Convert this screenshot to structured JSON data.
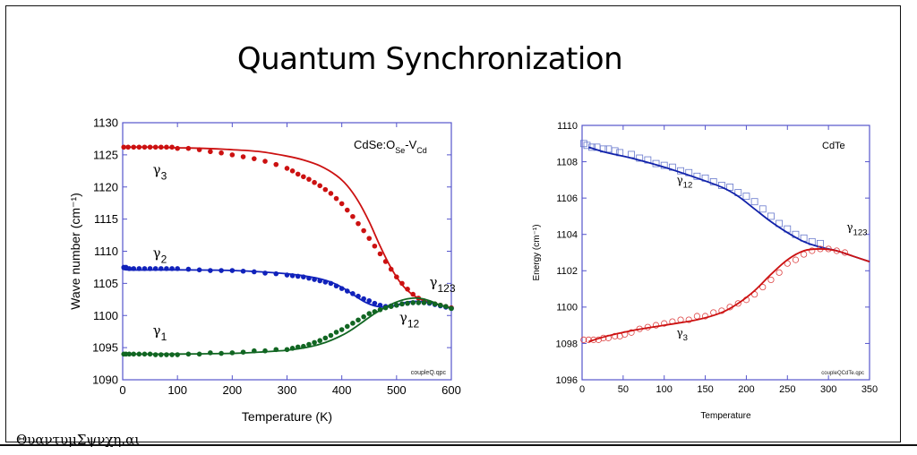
{
  "slide": {
    "title": "Quantum Synchronization",
    "footer": "ΘυαντυμΣψνχη.αι"
  },
  "chart_data": [
    {
      "type": "line",
      "title": "CdSe:O_Se-V_Cd",
      "annotation": {
        "main": "CdSe:O",
        "sub1": "Se",
        "mid": "-V",
        "sub2": "Cd"
      },
      "file_label": "coupleQ.qpc",
      "xlabel": "Temperature (K)",
      "ylabel": "Wave number (cm⁻¹)",
      "xlim": [
        0,
        600
      ],
      "ylim": [
        1090,
        1130
      ],
      "xticks": [
        0,
        100,
        200,
        300,
        400,
        500,
        600
      ],
      "yticks": [
        1090,
        1095,
        1100,
        1105,
        1110,
        1115,
        1120,
        1125,
        1130
      ],
      "grid": false,
      "labels": [
        {
          "text": "γ",
          "sub": "3",
          "x": 55,
          "y": 1122
        },
        {
          "text": "γ",
          "sub": "2",
          "x": 55,
          "y": 1109
        },
        {
          "text": "γ",
          "sub": "1",
          "x": 55,
          "y": 1097
        },
        {
          "text": "γ",
          "sub": "123",
          "x": 560,
          "y": 1104.5
        },
        {
          "text": "γ",
          "sub": "12",
          "x": 505,
          "y": 1099
        }
      ],
      "series": [
        {
          "name": "γ3 data",
          "style": "dots",
          "color": "#cc1111",
          "x": [
            2,
            10,
            20,
            30,
            40,
            50,
            60,
            70,
            80,
            90,
            100,
            120,
            140,
            160,
            180,
            200,
            220,
            240,
            260,
            280,
            300,
            310,
            320,
            330,
            340,
            350,
            360,
            370,
            380,
            390,
            400,
            410,
            420,
            430,
            440,
            450,
            460,
            470,
            480,
            490,
            500,
            510,
            520,
            530,
            540,
            550,
            560,
            570,
            580,
            590,
            600
          ],
          "y": [
            1126.2,
            1126.2,
            1126.2,
            1126.2,
            1126.2,
            1126.2,
            1126.2,
            1126.2,
            1126.2,
            1126.2,
            1126,
            1126,
            1125.8,
            1125.5,
            1125.3,
            1125,
            1124.7,
            1124.4,
            1124,
            1123.5,
            1122.9,
            1122.5,
            1122,
            1121.6,
            1121.2,
            1120.7,
            1120.2,
            1119.6,
            1119,
            1118.2,
            1117.4,
            1116.4,
            1115.4,
            1114.3,
            1113.2,
            1112,
            1110.8,
            1109.6,
            1108.4,
            1107.2,
            1106,
            1105,
            1104.1,
            1103.3,
            1102.7,
            1102.3,
            1102,
            1101.8,
            1101.6,
            1101.4,
            1101.2
          ]
        },
        {
          "name": "γ3 fit",
          "style": "line",
          "color": "#cc1111",
          "x": [
            0,
            50,
            100,
            150,
            200,
            250,
            300,
            330,
            360,
            390,
            410,
            430,
            450,
            470,
            490,
            510,
            530,
            550,
            570,
            590,
            600
          ],
          "y": [
            1126.2,
            1126.2,
            1126.1,
            1126,
            1125.8,
            1125.5,
            1124.8,
            1124.2,
            1123.3,
            1121.8,
            1120.2,
            1117.8,
            1114.6,
            1110.8,
            1107.4,
            1104.8,
            1103.2,
            1102.3,
            1101.8,
            1101.4,
            1101.2
          ]
        },
        {
          "name": "γ2 data",
          "style": "dots",
          "color": "#1122bb",
          "x": [
            2,
            6,
            12,
            20,
            30,
            40,
            50,
            60,
            70,
            80,
            90,
            100,
            120,
            140,
            160,
            180,
            200,
            220,
            240,
            260,
            280,
            300,
            310,
            320,
            330,
            340,
            350,
            360,
            370,
            380,
            390,
            400,
            410,
            420,
            430,
            440,
            450,
            460,
            470,
            480,
            490,
            500,
            510,
            520,
            530,
            540,
            550,
            560,
            570,
            580,
            590,
            600
          ],
          "y": [
            1107.5,
            1107.5,
            1107.3,
            1107.3,
            1107.3,
            1107.3,
            1107.3,
            1107.3,
            1107.3,
            1107.3,
            1107.3,
            1107.3,
            1107.2,
            1107.1,
            1107,
            1107,
            1107,
            1106.9,
            1106.8,
            1106.6,
            1106.5,
            1106.3,
            1106.2,
            1106.1,
            1106,
            1105.8,
            1105.6,
            1105.4,
            1105.2,
            1105,
            1104.6,
            1104.2,
            1103.8,
            1103.4,
            1103,
            1102.6,
            1102.3,
            1101.9,
            1101.6,
            1101.4,
            1101.5,
            1101.6,
            1101.8,
            1101.9,
            1102,
            1102,
            1102,
            1101.9,
            1101.7,
            1101.5,
            1101.3,
            1101.1
          ]
        },
        {
          "name": "γ2 fit",
          "style": "line",
          "color": "#1122bb",
          "x": [
            0,
            10,
            100,
            200,
            300,
            350,
            380,
            400,
            420,
            440,
            460,
            480,
            500,
            520,
            540,
            560,
            580,
            600
          ],
          "y": [
            1107.5,
            1107.1,
            1107.1,
            1107,
            1106.5,
            1105.9,
            1105.2,
            1104.4,
            1103.3,
            1102.2,
            1101.5,
            1101.3,
            1101.6,
            1102.1,
            1102.2,
            1102,
            1101.6,
            1101.1
          ]
        },
        {
          "name": "γ1 data",
          "style": "dots",
          "color": "#116622",
          "x": [
            2,
            6,
            12,
            20,
            30,
            40,
            50,
            60,
            70,
            80,
            90,
            100,
            120,
            140,
            160,
            180,
            200,
            220,
            240,
            260,
            280,
            300,
            310,
            320,
            330,
            340,
            350,
            360,
            370,
            380,
            390,
            400,
            410,
            420,
            430,
            440,
            450,
            460,
            470,
            480,
            490,
            500,
            510,
            520,
            530,
            540,
            550,
            560,
            570,
            580,
            590,
            600
          ],
          "y": [
            1094,
            1094,
            1094,
            1094,
            1094,
            1094,
            1094,
            1093.9,
            1093.9,
            1093.9,
            1093.9,
            1093.9,
            1094,
            1094,
            1094.2,
            1094.1,
            1094.2,
            1094.3,
            1094.5,
            1094.5,
            1094.7,
            1094.7,
            1094.9,
            1095.1,
            1095.2,
            1095.5,
            1095.8,
            1096.1,
            1096.5,
            1096.9,
            1097.4,
            1097.8,
            1098.3,
            1098.8,
            1099.3,
            1099.8,
            1100.3,
            1100.6,
            1100.9,
            1101.2,
            1101.4,
            1101.6,
            1101.8,
            1101.9,
            1102,
            1102,
            1102,
            1102,
            1101.8,
            1101.6,
            1101.4,
            1101.1
          ]
        },
        {
          "name": "γ1 fit",
          "style": "line",
          "color": "#116622",
          "x": [
            0,
            100,
            200,
            250,
            300,
            340,
            370,
            400,
            420,
            440,
            460,
            480,
            500,
            520,
            540,
            560,
            580,
            600
          ],
          "y": [
            1094,
            1094,
            1094.1,
            1094.3,
            1094.6,
            1095.1,
            1095.8,
            1096.9,
            1097.9,
            1099.1,
            1100.3,
            1101.3,
            1102.1,
            1102.6,
            1102.7,
            1102.3,
            1101.6,
            1101.1
          ]
        }
      ]
    },
    {
      "type": "line",
      "title": "CdTe",
      "file_label": "coupleQCdTe.qpc",
      "xlabel": "Temperature",
      "ylabel": "Energy (cm⁻¹)",
      "xlim": [
        0,
        350
      ],
      "ylim": [
        1096,
        1110
      ],
      "xticks": [
        0,
        50,
        100,
        150,
        200,
        250,
        300,
        350
      ],
      "yticks": [
        1096,
        1098,
        1100,
        1102,
        1104,
        1106,
        1108,
        1110
      ],
      "grid": false,
      "labels": [
        {
          "text": "γ",
          "sub": "12",
          "x": 115,
          "y": 1106.8
        },
        {
          "text": "γ",
          "sub": "3",
          "x": 115,
          "y": 1098.4
        },
        {
          "text": "γ",
          "sub": "123",
          "x": 322,
          "y": 1104.2
        }
      ],
      "series": [
        {
          "name": "γ12 data",
          "style": "squares",
          "color": "#6677cc",
          "x": [
            2,
            6,
            12,
            18,
            26,
            32,
            40,
            46,
            60,
            70,
            80,
            90,
            100,
            110,
            120,
            130,
            140,
            150,
            160,
            170,
            180,
            190,
            200,
            210,
            220,
            230,
            240,
            250,
            260,
            270,
            280,
            290
          ],
          "y": [
            1109,
            1108.9,
            1108.8,
            1108.8,
            1108.7,
            1108.7,
            1108.6,
            1108.5,
            1108.4,
            1108.2,
            1108.1,
            1107.9,
            1107.8,
            1107.7,
            1107.5,
            1107.4,
            1107.2,
            1107.1,
            1106.9,
            1106.7,
            1106.6,
            1106.3,
            1106.1,
            1105.8,
            1105.4,
            1105,
            1104.6,
            1104.3,
            1104,
            1103.8,
            1103.6,
            1103.5
          ]
        },
        {
          "name": "γ12 fit",
          "style": "line",
          "color": "#1122aa",
          "x": [
            8,
            30,
            60,
            100,
            140,
            170,
            190,
            210,
            230,
            250,
            270,
            290,
            310,
            330,
            350
          ],
          "y": [
            1108.8,
            1108.5,
            1108.2,
            1107.7,
            1107.1,
            1106.6,
            1106.1,
            1105.4,
            1104.7,
            1104.1,
            1103.6,
            1103.3,
            1103.1,
            1102.8,
            1102.5
          ]
        },
        {
          "name": "γ3 data",
          "style": "circles",
          "color": "#dd4444",
          "x": [
            2,
            8,
            14,
            20,
            26,
            32,
            40,
            46,
            52,
            60,
            70,
            80,
            90,
            100,
            110,
            120,
            130,
            140,
            150,
            160,
            170,
            180,
            190,
            200,
            210,
            220,
            230,
            240,
            250,
            260,
            270,
            280,
            290,
            300,
            310,
            320
          ],
          "y": [
            1098.2,
            1098.2,
            1098.2,
            1098.2,
            1098.3,
            1098.3,
            1098.4,
            1098.4,
            1098.5,
            1098.6,
            1098.8,
            1098.9,
            1099,
            1099.1,
            1099.2,
            1099.3,
            1099.3,
            1099.5,
            1099.5,
            1099.7,
            1099.8,
            1100,
            1100.2,
            1100.4,
            1100.7,
            1101.1,
            1101.5,
            1101.9,
            1102.4,
            1102.6,
            1102.9,
            1103.1,
            1103.2,
            1103.2,
            1103.1,
            1103
          ]
        },
        {
          "name": "γ3 fit",
          "style": "line",
          "color": "#cc1111",
          "x": [
            8,
            30,
            60,
            100,
            140,
            170,
            190,
            210,
            230,
            250,
            270,
            290,
            310,
            330,
            350
          ],
          "y": [
            1098.1,
            1098.4,
            1098.7,
            1099,
            1099.3,
            1099.7,
            1100.2,
            1100.9,
            1101.8,
            1102.6,
            1103.1,
            1103.2,
            1103.1,
            1102.8,
            1102.5
          ]
        }
      ]
    }
  ]
}
